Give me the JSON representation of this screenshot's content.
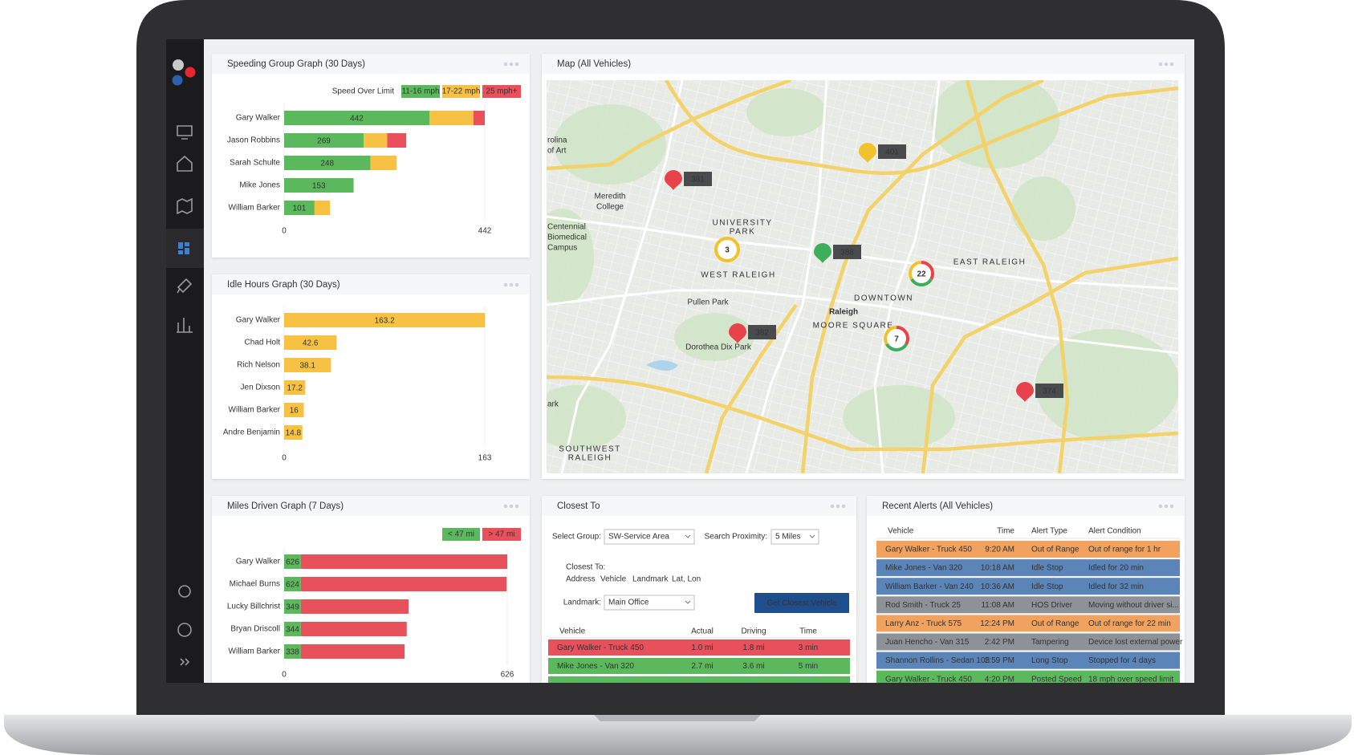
{
  "chart_data": [
    {
      "type": "bar",
      "title": "Speeding Group Graph  (30 Days)",
      "legend_title": "Speed Over Limit",
      "categories": [
        "Gary Walker",
        "Jason Robbins",
        "Sarah Schulte",
        "Mike Jones",
        "William Barker"
      ],
      "series": [
        {
          "name": "11-16 mph",
          "color": "#5cb85c",
          "values": [
            320,
            175,
            190,
            153,
            67
          ]
        },
        {
          "name": "17-22 mph",
          "color": "#f7c244",
          "values": [
            97,
            52,
            58,
            0,
            34
          ]
        },
        {
          "name": "25 mph+",
          "color": "#e8505b",
          "values": [
            25,
            42,
            0,
            0,
            0
          ]
        }
      ],
      "totals": [
        442,
        269,
        248,
        153,
        101
      ],
      "xlim": [
        0,
        442
      ],
      "xticks": [
        0,
        442
      ],
      "grid": true
    },
    {
      "type": "bar",
      "title": "Idle Hours Graph  (30 Days)",
      "categories": [
        "Gary Walker",
        "Chad Holt",
        "Rich Nelson",
        "Jen Dixson",
        "William Barker",
        "Andre Benjamin"
      ],
      "values": [
        163.2,
        42.6,
        38.1,
        17.2,
        16,
        14.8
      ],
      "color": "#f7c244",
      "xlim": [
        0,
        163
      ],
      "xticks": [
        0,
        163
      ],
      "grid": true
    },
    {
      "type": "bar",
      "title": "Miles Driven Graph  (7 Days)",
      "categories": [
        "Gary Walker",
        "Michael Burns",
        "Lucky Billchrist",
        "Bryan Driscoll",
        "William Barker"
      ],
      "series": [
        {
          "name": "< 47 mi",
          "color": "#5cb85c",
          "values": [
            47,
            47,
            47,
            47,
            47
          ]
        },
        {
          "name": "> 47 mi",
          "color": "#e8505b",
          "values": [
            579,
            577,
            302,
            297,
            291
          ]
        }
      ],
      "totals": [
        626,
        624,
        349,
        344,
        338
      ],
      "xlim": [
        0,
        626
      ],
      "xticks": [
        0,
        626
      ],
      "grid": true
    }
  ],
  "map": {
    "title": "Map (All Vehicles)",
    "markers": [
      {
        "label": "381",
        "color": "#e8434a"
      },
      {
        "label": "401",
        "color": "#f2c12e"
      },
      {
        "label": "388",
        "color": "#3fae5a"
      },
      {
        "label": "382",
        "color": "#e8434a"
      },
      {
        "label": "374",
        "color": "#e8434a"
      }
    ],
    "clusters": [
      {
        "label": "3",
        "colors": [
          "#f2c12e"
        ]
      },
      {
        "label": "22",
        "colors": [
          "#e8434a",
          "#3fae5a",
          "#f2c12e"
        ]
      },
      {
        "label": "7",
        "colors": [
          "#e8434a",
          "#3fae5a",
          "#f2c12e"
        ]
      }
    ],
    "places": [
      {
        "text": "Raleigh",
        "style": "city"
      },
      {
        "text": "DOWNTOWN",
        "style": "area"
      },
      {
        "text": "MOORE SQUARE",
        "style": "area"
      },
      {
        "text": "EAST RALEIGH",
        "style": "area"
      },
      {
        "text": "UNIVERSITY",
        "style": "area"
      },
      {
        "text": "PARK",
        "style": "area"
      },
      {
        "text": "WEST RALEIGH",
        "style": "area"
      },
      {
        "text": "Pullen Park",
        "style": "park"
      },
      {
        "text": "Dorothea Dix Park",
        "style": "park"
      },
      {
        "text": "Meredith",
        "style": "poi"
      },
      {
        "text": "College",
        "style": "poi"
      },
      {
        "text": "Centennial",
        "style": "poi"
      },
      {
        "text": "Biomedical",
        "style": "poi"
      },
      {
        "text": "Campus",
        "style": "poi"
      },
      {
        "text": "SOUTHWEST",
        "style": "area"
      },
      {
        "text": "RALEIGH",
        "style": "area"
      },
      {
        "text": "rolina",
        "style": "poi"
      },
      {
        "text": "of Art",
        "style": "poi"
      },
      {
        "text": "ark",
        "style": "park"
      }
    ]
  },
  "closest": {
    "title": "Closest To",
    "group_label": "Select Group:",
    "group_value": "SW-Service Area",
    "proximity_label": "Search Proximity:",
    "proximity_value": "5 Miles",
    "closest_label": "Closest To:",
    "options": [
      "Address",
      "Vehicle",
      "Landmark",
      "Lat, Lon"
    ],
    "landmark_label": "Landmark:",
    "landmark_value": "Main Office",
    "button": "Get Closest Vehicle",
    "columns": [
      "Vehicle",
      "Actual",
      "Driving",
      "Time"
    ],
    "rows": [
      [
        "Gary Walker - Truck 450",
        "1.0 mi",
        "1.8 mi",
        "3 min"
      ],
      [
        "Mike Jones - Van 320",
        "2.7 mi",
        "3.6 mi",
        "5 min"
      ]
    ],
    "row_colors": [
      "#e8505b",
      "#5cb85c"
    ]
  },
  "alerts": {
    "title": "Recent Alerts (All Vehicles)",
    "columns": [
      "Vehicle",
      "Time",
      "Alert Type",
      "Alert Condition"
    ],
    "rows": [
      [
        "Gary Walker - Truck 450",
        "9:20 AM",
        "Out of Range",
        "Out of range for 1 hr"
      ],
      [
        "Mike Jones - Van 320",
        "10:18 AM",
        "Idle Stop",
        "Idled for 20 min"
      ],
      [
        "William Barker - Van 240",
        "10:36 AM",
        "Idle Stop",
        "Idled for 32 min"
      ],
      [
        "Rod Smith - Truck 25",
        "11:08 AM",
        "HOS Driver",
        "Moving without driver si..."
      ],
      [
        "Larry Anz - Truck 575",
        "12:24 PM",
        "Out of Range",
        "Out of range for 22 min"
      ],
      [
        "Juan Hencho - Van 315",
        "2:42 PM",
        "Tampering",
        "Device lost external power"
      ],
      [
        "Shannon Rollins - Sedan 105",
        "2:59 PM",
        "Long Stop",
        "Stopped for 4 days"
      ],
      [
        "Gary Walker - Truck 450",
        "4:20 PM",
        "Posted Speed",
        "18 mph over speed limit"
      ]
    ],
    "row_colors": [
      "#f0a25e",
      "#5b84b8",
      "#5b84b8",
      "#8d9299",
      "#f0a25e",
      "#8d9299",
      "#5b84b8",
      "#5cb85c"
    ]
  }
}
